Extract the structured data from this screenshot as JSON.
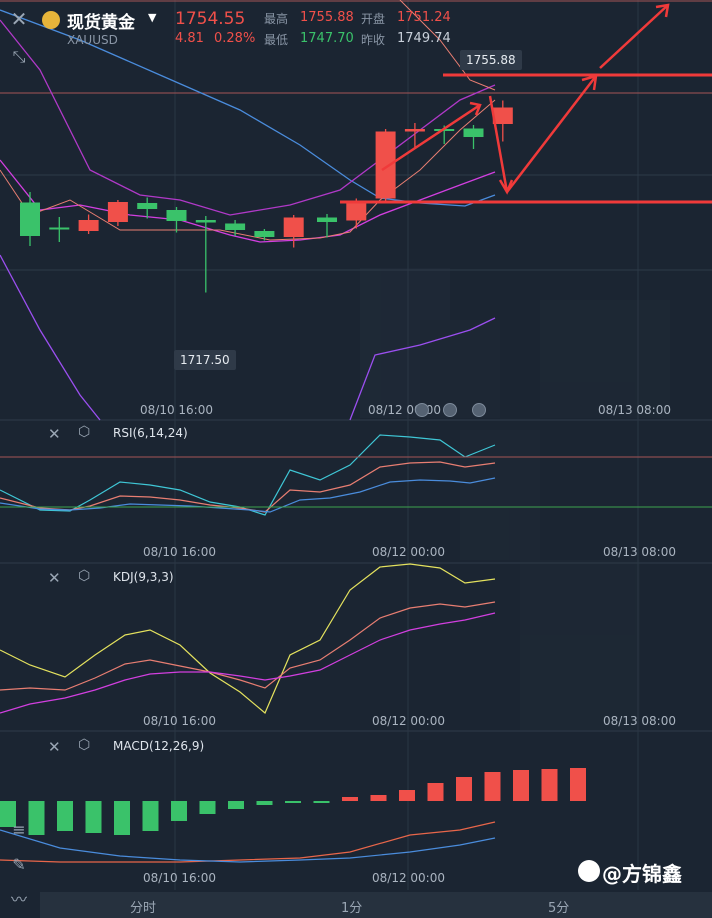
{
  "header": {
    "symbol_name": "现货黄金",
    "symbol_code": "XAUUSD",
    "last_price": "1754.55",
    "change": "4.81",
    "change_pct": "0.28%",
    "high_label": "最高",
    "high_value": "1755.88",
    "low_label": "最低",
    "low_value": "1747.70",
    "open_label": "开盘",
    "open_value": "1751.24",
    "prev_close_label": "昨收",
    "prev_close_value": "1749.74"
  },
  "price_chart": {
    "high_marker": "1755.88",
    "low_marker": "1717.50",
    "x_ticks": [
      "08/10 16:00",
      "08/12 00:00",
      "08/13 08:00"
    ]
  },
  "indicators": {
    "rsi": {
      "label": "RSI(6,14,24)",
      "x_ticks": [
        "08/10 16:00",
        "08/12 00:00",
        "08/13 08:00"
      ]
    },
    "kdj": {
      "label": "KDJ(9,3,3)",
      "x_ticks": [
        "08/10 16:00",
        "08/12 00:00",
        "08/13 08:00"
      ]
    },
    "macd": {
      "label": "MACD(12,26,9)",
      "x_ticks": [
        "08/10 16:00",
        "08/12 00:00"
      ]
    }
  },
  "bottom_tabs": [
    "分时",
    "1分",
    "5分"
  ],
  "watermark": "@方锦鑫",
  "colors": {
    "up": "#f0504a",
    "down": "#3ac26a",
    "background": "#1b2532"
  },
  "chart_data": {
    "type": "candlestick",
    "candles": [
      {
        "o": 1735.5,
        "c": 1728.8,
        "h": 1737.6,
        "l": 1726.8
      },
      {
        "o": 1730.5,
        "c": 1730.2,
        "h": 1732.6,
        "l": 1727.6
      },
      {
        "o": 1729.8,
        "c": 1732.0,
        "h": 1733.1,
        "l": 1729.2
      },
      {
        "o": 1731.6,
        "c": 1735.6,
        "h": 1736.0,
        "l": 1730.8
      },
      {
        "o": 1735.4,
        "c": 1734.2,
        "h": 1736.5,
        "l": 1732.3
      },
      {
        "o": 1734.0,
        "c": 1731.8,
        "h": 1734.6,
        "l": 1729.5
      },
      {
        "o": 1732.0,
        "c": 1731.5,
        "h": 1732.8,
        "l": 1717.5
      },
      {
        "o": 1731.3,
        "c": 1730.0,
        "h": 1732.0,
        "l": 1728.8
      },
      {
        "o": 1729.8,
        "c": 1728.6,
        "h": 1730.2,
        "l": 1727.9
      },
      {
        "o": 1728.6,
        "c": 1732.5,
        "h": 1733.0,
        "l": 1726.5
      },
      {
        "o": 1732.5,
        "c": 1731.6,
        "h": 1733.2,
        "l": 1728.5
      },
      {
        "o": 1731.9,
        "c": 1735.7,
        "h": 1736.3,
        "l": 1730.3
      },
      {
        "o": 1736.3,
        "c": 1749.7,
        "h": 1750.2,
        "l": 1735.8
      },
      {
        "o": 1749.7,
        "c": 1750.2,
        "h": 1751.4,
        "l": 1746.2
      },
      {
        "o": 1750.2,
        "c": 1749.9,
        "h": 1750.9,
        "l": 1747.2
      },
      {
        "o": 1750.3,
        "c": 1748.6,
        "h": 1751.0,
        "l": 1746.2
      },
      {
        "o": 1751.2,
        "c": 1754.5,
        "h": 1755.9,
        "l": 1747.7
      }
    ],
    "ylim": [
      1710,
      1760
    ]
  }
}
